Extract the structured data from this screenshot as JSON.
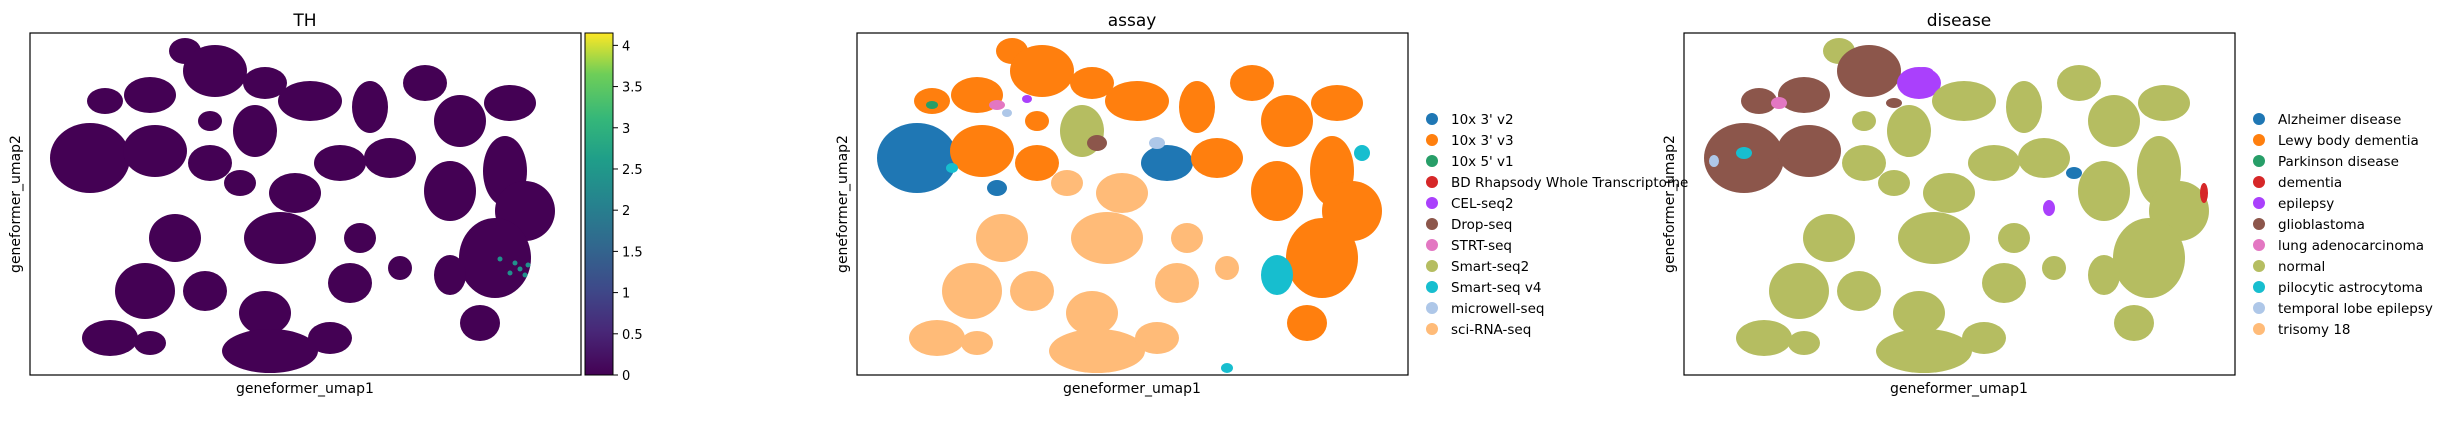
{
  "chart_data": [
    {
      "type": "scatter",
      "title": "TH",
      "xlabel": "geneformer_umap1",
      "ylabel": "geneformer_umap2",
      "colorbar": {
        "colormap": "viridis",
        "range": [
          0,
          4.15
        ],
        "ticks": [
          0,
          0.5,
          1,
          1.5,
          2,
          2.5,
          3,
          3.5,
          4
        ],
        "tick_labels": [
          "0",
          "0.5",
          "1",
          "1.5",
          "2",
          "2.5",
          "3",
          "3.5",
          "4"
        ]
      },
      "background_color": "#440154"
    },
    {
      "type": "scatter",
      "title": "assay",
      "xlabel": "geneformer_umap1",
      "ylabel": "geneformer_umap2",
      "legend_position": "right",
      "legend": [
        {
          "label": "10x 3' v2",
          "color": "#1f77b4"
        },
        {
          "label": "10x 3' v3",
          "color": "#ff7f0e"
        },
        {
          "label": "10x 5' v1",
          "color": "#279e68"
        },
        {
          "label": "BD Rhapsody Whole Transcriptome",
          "color": "#d62728"
        },
        {
          "label": "CEL-seq2",
          "color": "#aa40fc"
        },
        {
          "label": "Drop-seq",
          "color": "#8c564b"
        },
        {
          "label": "STRT-seq",
          "color": "#e377c2"
        },
        {
          "label": "Smart-seq2",
          "color": "#b5bd61"
        },
        {
          "label": "Smart-seq v4",
          "color": "#17becf"
        },
        {
          "label": "microwell-seq",
          "color": "#aec7e8"
        },
        {
          "label": "sci-RNA-seq",
          "color": "#ffbb78"
        }
      ]
    },
    {
      "type": "scatter",
      "title": "disease",
      "xlabel": "geneformer_umap1",
      "ylabel": "geneformer_umap2",
      "legend_position": "right",
      "legend": [
        {
          "label": "Alzheimer disease",
          "color": "#1f77b4"
        },
        {
          "label": "Lewy body dementia",
          "color": "#ff7f0e"
        },
        {
          "label": "Parkinson disease",
          "color": "#279e68"
        },
        {
          "label": "dementia",
          "color": "#d62728"
        },
        {
          "label": "epilepsy",
          "color": "#aa40fc"
        },
        {
          "label": "glioblastoma",
          "color": "#8c564b"
        },
        {
          "label": "lung adenocarcinoma",
          "color": "#e377c2"
        },
        {
          "label": "normal",
          "color": "#b5bd61"
        },
        {
          "label": "pilocytic astrocytoma",
          "color": "#17becf"
        },
        {
          "label": "temporal lobe epilepsy",
          "color": "#aec7e8"
        },
        {
          "label": "trisomy 18",
          "color": "#ffbb78"
        }
      ]
    }
  ]
}
